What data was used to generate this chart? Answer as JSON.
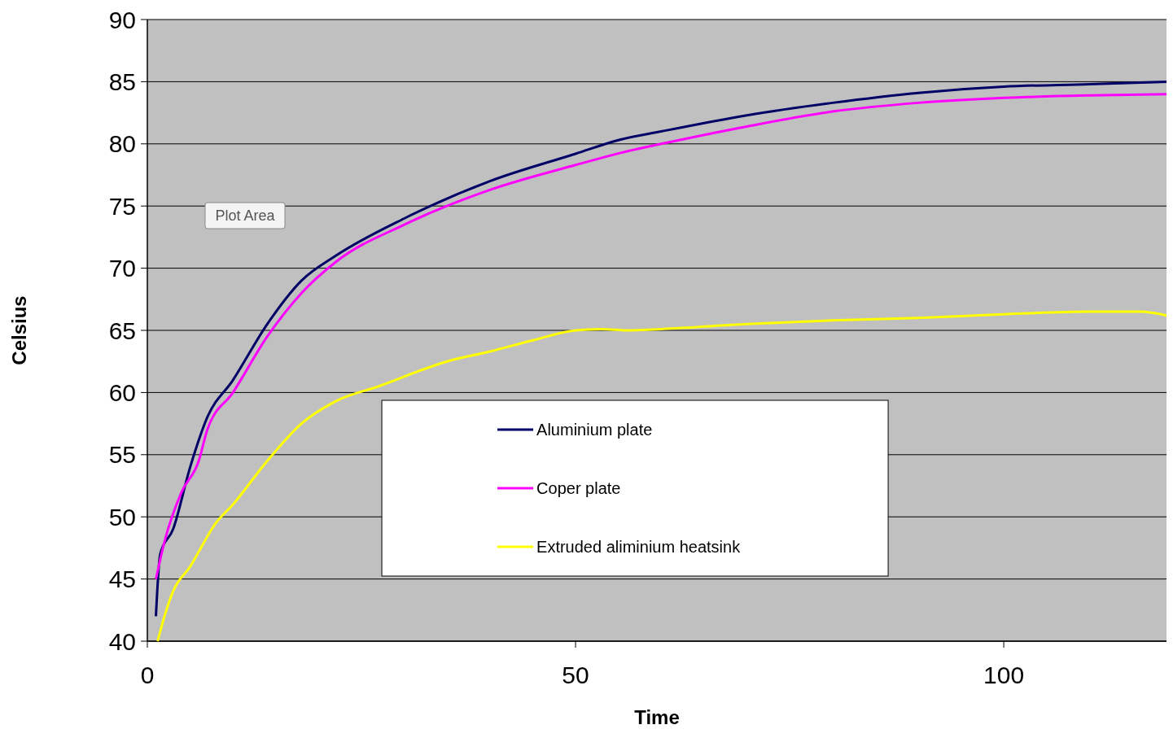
{
  "chart_data": {
    "type": "line",
    "xlabel": "Time",
    "ylabel": "Celsius",
    "xlim": [
      0,
      119
    ],
    "xticks": [
      0,
      50,
      100
    ],
    "ylim": [
      40,
      90
    ],
    "yticks": [
      40,
      45,
      50,
      55,
      60,
      65,
      70,
      75,
      80,
      85,
      90
    ],
    "grid": "y",
    "legend": "bottom right",
    "marker": "none",
    "line_style": "solid",
    "annotations": [
      "Plot Area"
    ],
    "series": [
      {
        "name": "Aluminium plate",
        "color": "#000066",
        "x": [
          1,
          1.5,
          3,
          5,
          7,
          10,
          14,
          18,
          22,
          30,
          40,
          50,
          55,
          60,
          70,
          80,
          90,
          100,
          110,
          119
        ],
        "values": [
          42,
          47,
          49,
          54,
          58,
          61,
          65.5,
          69,
          71,
          74,
          77,
          79.2,
          80.3,
          81,
          82.3,
          83.3,
          84.1,
          84.6,
          84.8,
          85
        ]
      },
      {
        "name": "Coper plate",
        "color": "#ff00ff",
        "x": [
          1,
          2,
          4,
          6,
          7,
          10,
          14,
          18,
          22,
          30,
          40,
          50,
          56,
          60,
          70,
          80,
          90,
          100,
          110,
          119
        ],
        "values": [
          45,
          48,
          52,
          54.5,
          57,
          60,
          64.5,
          68,
          70.5,
          73.5,
          76.3,
          78.3,
          79.4,
          80,
          81.4,
          82.6,
          83.3,
          83.7,
          83.9,
          84
        ]
      },
      {
        "name": "Extruded aliminium heatsink",
        "color": "#ffff00",
        "x": [
          1.2,
          2,
          3,
          5,
          8,
          10,
          14,
          18,
          22,
          27,
          35,
          40,
          45,
          50,
          53,
          56,
          60,
          70,
          80,
          90,
          100,
          110,
          116,
          119
        ],
        "values": [
          40,
          42,
          44,
          46,
          49.5,
          51,
          54.5,
          57.5,
          59.3,
          60.5,
          62.5,
          63.3,
          64.2,
          65,
          65.1,
          65,
          65.1,
          65.5,
          65.8,
          66,
          66.3,
          66.5,
          66.5,
          66.2
        ]
      }
    ]
  }
}
